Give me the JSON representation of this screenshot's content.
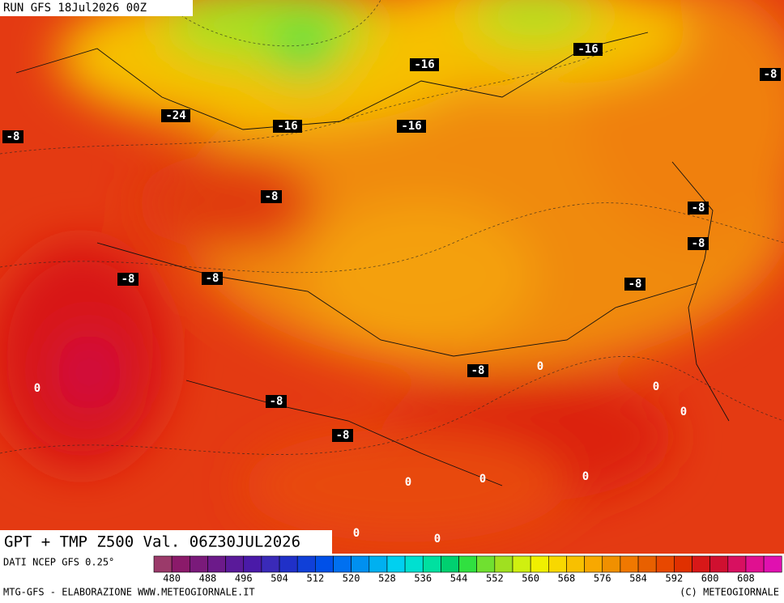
{
  "header": {
    "run": "RUN GFS 18Jul2026 00Z"
  },
  "map": {
    "title": "GPT + TMP Z500 Val. 06Z30JUL2026",
    "contour_labels": [
      "-16",
      "-16",
      "-8",
      "-24",
      "-16",
      "-16",
      "-8",
      "-8",
      "-8",
      "-8",
      "-8",
      "-8",
      "-8",
      "-8",
      "0",
      "0",
      "0",
      "-8",
      "0",
      "-8",
      "0",
      "0",
      "0",
      "0",
      "0"
    ]
  },
  "scale": {
    "labels": [
      480,
      488,
      496,
      504,
      512,
      520,
      528,
      536,
      544,
      552,
      560,
      568,
      576,
      584,
      592,
      600,
      608
    ],
    "colors": [
      "#9b3a6a",
      "#8b1a6a",
      "#7a1a7a",
      "#6c1a8a",
      "#5a1a9a",
      "#4a1aa8",
      "#3a2ab8",
      "#2030c8",
      "#1040d8",
      "#0050e8",
      "#0070f0",
      "#0090f0",
      "#00b0f0",
      "#00d0f0",
      "#00e0d0",
      "#00e0a0",
      "#00d070",
      "#30e040",
      "#70e030",
      "#a0e020",
      "#d0f010",
      "#f0f000",
      "#f8d800",
      "#f8c000",
      "#f8a800",
      "#f09000",
      "#f07800",
      "#e86000",
      "#e84800",
      "#e03000",
      "#d81818",
      "#d01030",
      "#d81060",
      "#e01090",
      "#e010b0"
    ]
  },
  "footer": {
    "source": "DATI NCEP GFS 0.25°",
    "credit": "MTG-GFS - ELABORAZIONE WWW.METEOGIORNALE.IT",
    "copyright": "(C) METEOGIORNALE"
  }
}
